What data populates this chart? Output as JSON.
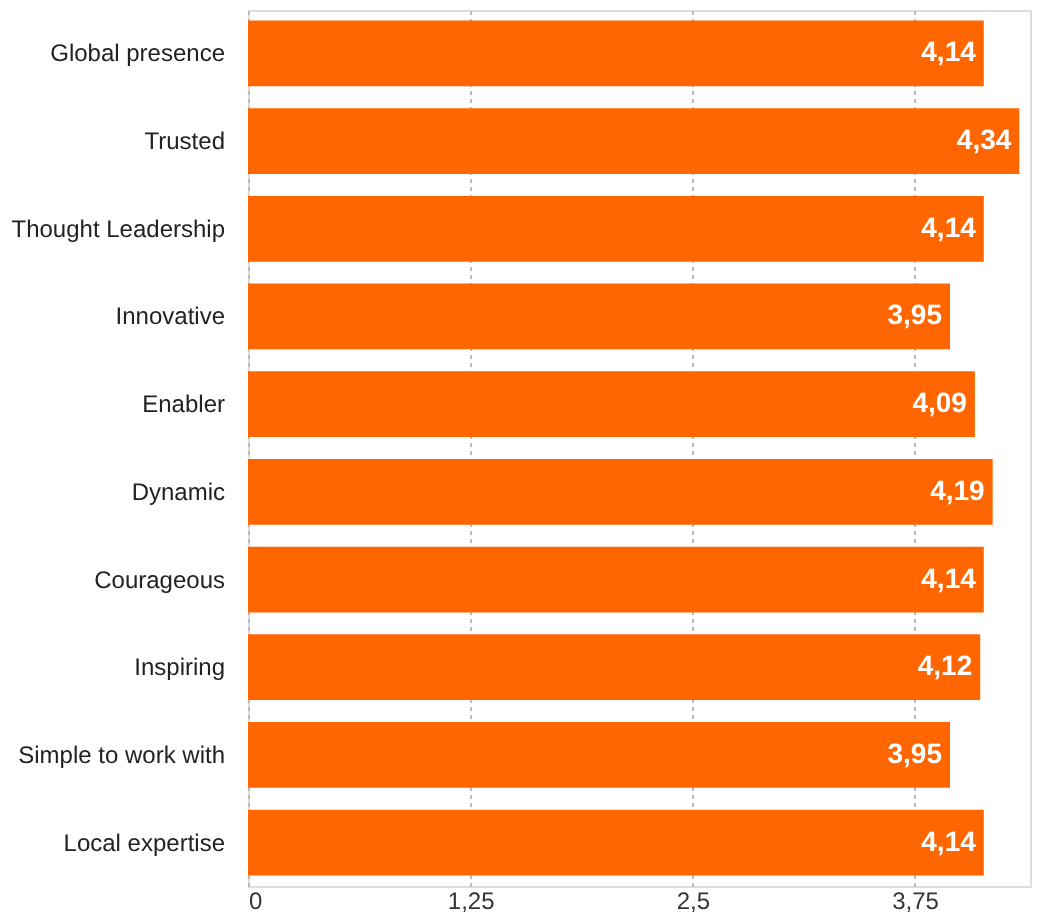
{
  "chart_data": {
    "type": "bar",
    "orientation": "horizontal",
    "categories": [
      "Global presence",
      "Trusted",
      "Thought Leadership",
      "Innovative",
      "Enabler",
      "Dynamic",
      "Courageous",
      "Inspiring",
      "Simple to work with",
      "Local expertise"
    ],
    "values": [
      4.14,
      4.34,
      4.14,
      3.95,
      4.09,
      4.19,
      4.14,
      4.12,
      3.95,
      4.14
    ],
    "value_labels": [
      "4,14",
      "4,34",
      "4,14",
      "3,95",
      "4,09",
      "4,19",
      "4,14",
      "4,12",
      "3,95",
      "4,14"
    ],
    "color": "#ff6600",
    "xlim": [
      0,
      4.4
    ],
    "xticks": [
      0,
      {
        "value": 1.25,
        "label": "1,25"
      },
      {
        "value": 2.5,
        "label": "2,5"
      },
      {
        "value": 3.75,
        "label": "3,75"
      }
    ],
    "grid": "x"
  }
}
